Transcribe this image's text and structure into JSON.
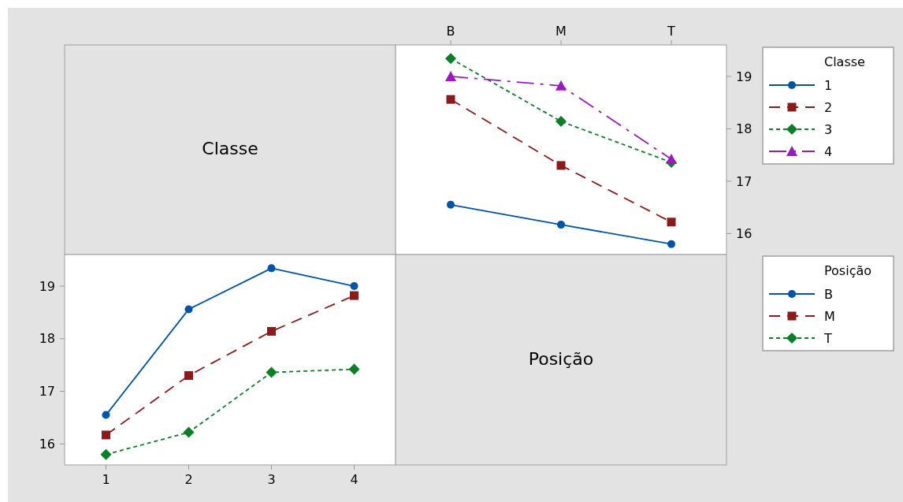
{
  "chart_data": [
    {
      "type": "other",
      "title": "Classe"
    },
    {
      "type": "line",
      "categories": [
        "B",
        "M",
        "T"
      ],
      "ylim": [
        15.6,
        19.6
      ],
      "yticks": [
        16,
        17,
        18,
        19
      ],
      "legend": "right",
      "legend_title": "Classe",
      "grid": false,
      "series": [
        {
          "name": "1",
          "color": "#0054a6",
          "marker": "circle",
          "line_style": "solid",
          "values": [
            16.55,
            16.17,
            15.8
          ]
        },
        {
          "name": "2",
          "color": "#8b1a1a",
          "marker": "square",
          "line_style": "dashed",
          "values": [
            18.56,
            17.3,
            16.22
          ]
        },
        {
          "name": "3",
          "color": "#0a7f25",
          "marker": "diamond",
          "line_style": "dotted",
          "values": [
            19.34,
            18.14,
            17.36
          ]
        },
        {
          "name": "4",
          "color": "#9b19c0",
          "marker": "triangle",
          "line_style": "dashdot",
          "values": [
            19.0,
            18.82,
            17.42
          ]
        }
      ]
    },
    {
      "type": "line",
      "categories": [
        "1",
        "2",
        "3",
        "4"
      ],
      "ylim": [
        15.6,
        19.6
      ],
      "yticks": [
        16,
        17,
        18,
        19
      ],
      "legend": "right",
      "legend_title": "Posição",
      "grid": false,
      "series": [
        {
          "name": "B",
          "color": "#0054a6",
          "marker": "circle",
          "line_style": "solid",
          "values": [
            16.55,
            18.56,
            19.34,
            19.0
          ]
        },
        {
          "name": "M",
          "color": "#8b1a1a",
          "marker": "square",
          "line_style": "dashed",
          "values": [
            16.17,
            17.3,
            18.14,
            18.82
          ]
        },
        {
          "name": "T",
          "color": "#0a7f25",
          "marker": "diamond",
          "line_style": "dotted",
          "values": [
            15.8,
            16.22,
            17.36,
            17.42
          ]
        }
      ]
    },
    {
      "type": "other",
      "title": "Posição"
    }
  ]
}
